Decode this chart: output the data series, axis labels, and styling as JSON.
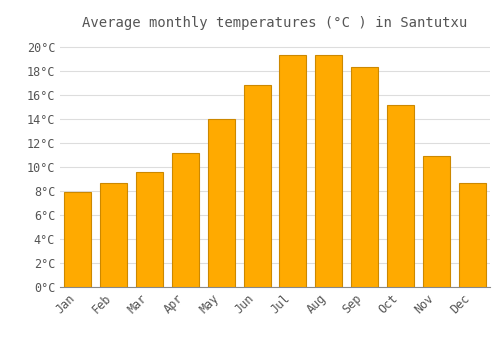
{
  "title": "Average monthly temperatures (°C ) in Santutxu",
  "months": [
    "Jan",
    "Feb",
    "Mar",
    "Apr",
    "May",
    "Jun",
    "Jul",
    "Aug",
    "Sep",
    "Oct",
    "Nov",
    "Dec"
  ],
  "values": [
    7.9,
    8.7,
    9.6,
    11.2,
    14.0,
    16.8,
    19.3,
    19.3,
    18.3,
    15.2,
    10.9,
    8.7
  ],
  "bar_color": "#FFAA00",
  "bar_edge_color": "#CC8800",
  "background_color": "#FFFFFF",
  "grid_color": "#DDDDDD",
  "text_color": "#555555",
  "ylim": [
    0,
    21
  ],
  "yticks": [
    0,
    2,
    4,
    6,
    8,
    10,
    12,
    14,
    16,
    18,
    20
  ],
  "title_fontsize": 10,
  "tick_fontsize": 8.5,
  "bar_width": 0.75
}
